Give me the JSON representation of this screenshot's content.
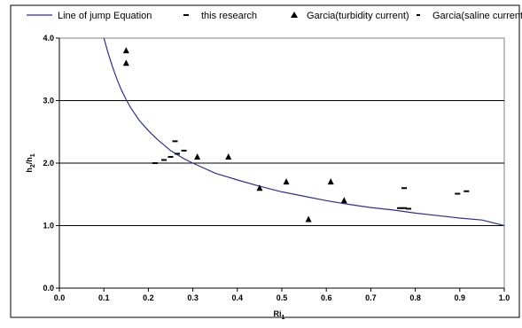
{
  "chart_data": {
    "type": "scatter",
    "xlabel": "Ri",
    "xlabel_sub": "1",
    "ylabel_parts": [
      "h",
      "2",
      "/h",
      "1"
    ],
    "xlim": [
      0.0,
      1.0
    ],
    "ylim": [
      0.0,
      4.0
    ],
    "x_ticks": [
      "0.0",
      "0.1",
      "0.2",
      "0.3",
      "0.4",
      "0.5",
      "0.6",
      "0.7",
      "0.8",
      "0.9",
      "1.0"
    ],
    "y_ticks": [
      "0.0",
      "1.0",
      "2.0",
      "3.0",
      "4.0"
    ],
    "grid": "horizontal",
    "legend_position": "top",
    "series": [
      {
        "name": "Line of jump Equation",
        "kind": "line",
        "color": "#2e3192",
        "x": [
          0.1,
          0.11,
          0.12,
          0.13,
          0.14,
          0.15,
          0.16,
          0.18,
          0.2,
          0.22,
          0.25,
          0.28,
          0.3,
          0.35,
          0.4,
          0.45,
          0.5,
          0.55,
          0.6,
          0.65,
          0.7,
          0.75,
          0.8,
          0.85,
          0.9,
          0.95,
          1.0
        ],
        "y": [
          4.0,
          3.75,
          3.53,
          3.33,
          3.16,
          3.02,
          2.89,
          2.68,
          2.52,
          2.38,
          2.2,
          2.07,
          2.0,
          1.84,
          1.73,
          1.63,
          1.54,
          1.47,
          1.4,
          1.34,
          1.29,
          1.25,
          1.2,
          1.16,
          1.12,
          1.09,
          1.0
        ]
      },
      {
        "name": "this research",
        "kind": "dash",
        "color": "#000000",
        "points": [
          [
            0.215,
            2.0
          ],
          [
            0.235,
            2.05
          ],
          [
            0.25,
            2.1
          ],
          [
            0.265,
            2.15
          ],
          [
            0.28,
            2.2
          ],
          [
            0.26,
            2.35
          ]
        ]
      },
      {
        "name": "Garcia(turbidity current)",
        "kind": "triangle",
        "color": "#000000",
        "points": [
          [
            0.15,
            3.8
          ],
          [
            0.15,
            3.6
          ],
          [
            0.31,
            2.1
          ],
          [
            0.38,
            2.1
          ],
          [
            0.45,
            1.6
          ],
          [
            0.51,
            1.7
          ],
          [
            0.56,
            1.1
          ],
          [
            0.61,
            1.7
          ],
          [
            0.64,
            1.4
          ]
        ]
      },
      {
        "name": "Garcia(saline current",
        "kind": "dash",
        "color": "#000000",
        "points": [
          [
            0.765,
            1.28
          ],
          [
            0.775,
            1.28
          ],
          [
            0.785,
            1.27
          ],
          [
            0.775,
            1.6
          ],
          [
            0.895,
            1.51
          ],
          [
            0.915,
            1.55
          ]
        ]
      }
    ]
  }
}
